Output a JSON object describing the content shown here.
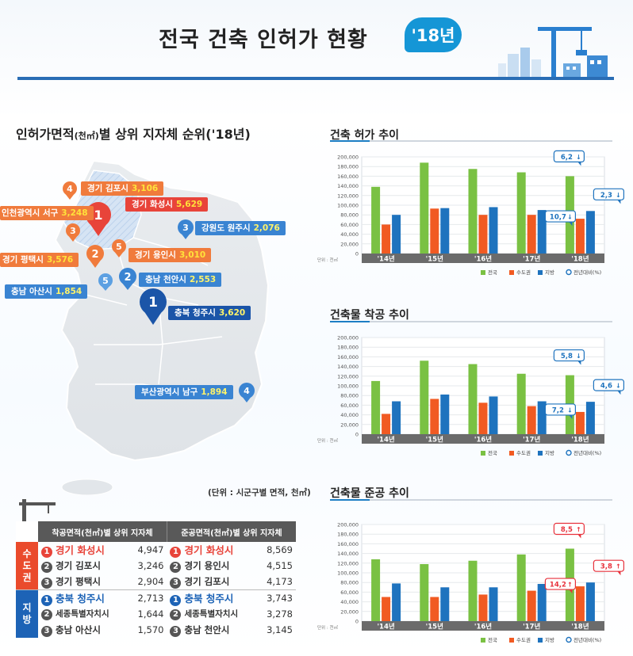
{
  "header": {
    "title": "전국 건축 인허가 현황",
    "year_badge": "'18년"
  },
  "map": {
    "title": "인허가면적",
    "title_unit": "(천㎡)",
    "title_rest": "별 상위 지자체 순위('18년)",
    "unit_note": "(단위 : 시군구별 면적, 천㎡)",
    "pins": [
      {
        "rank": "1",
        "name": "경기 화성시",
        "value": "5,629",
        "color": "#e8443a"
      },
      {
        "rank": "2",
        "name": "경기 평택시",
        "value": "3,576",
        "color": "#f07b3c"
      },
      {
        "rank": "3",
        "name": "인천광역시 서구",
        "value": "3,248",
        "color": "#f07b3c"
      },
      {
        "rank": "4",
        "name": "경기 김포시",
        "value": "3,106",
        "color": "#f07b3c"
      },
      {
        "rank": "5",
        "name": "경기 용인시",
        "value": "3,010",
        "color": "#f07b3c"
      },
      {
        "rank": "1",
        "name": "충북 청주시",
        "value": "3,620",
        "color": "#1b55a8"
      },
      {
        "rank": "2",
        "name": "충남 천안시",
        "value": "2,553",
        "color": "#3a84d2"
      },
      {
        "rank": "3",
        "name": "강원도 원주시",
        "value": "2,076",
        "color": "#3a84d2"
      },
      {
        "rank": "4",
        "name": "부산광역시 남구",
        "value": "1,894",
        "color": "#3a84d2"
      },
      {
        "rank": "5",
        "name": "충남 아산시",
        "value": "1,854",
        "color": "#3a84d2"
      }
    ]
  },
  "table": {
    "col1": "착공면적(천㎡)별 상위 지자체",
    "col2": "준공면적(천㎡)별 상위 지자체",
    "groups": [
      {
        "label": "수도권",
        "rows": [
          {
            "r1": "1",
            "n1": "경기 화성시",
            "v1": "4,947",
            "r2": "1",
            "n2": "경기 화성시",
            "v2": "8,569"
          },
          {
            "r1": "2",
            "n1": "경기 김포시",
            "v1": "3,246",
            "r2": "2",
            "n2": "경기 용인시",
            "v2": "4,515"
          },
          {
            "r1": "3",
            "n1": "경기 평택시",
            "v1": "2,904",
            "r2": "3",
            "n2": "경기 김포시",
            "v2": "4,173"
          }
        ]
      },
      {
        "label": "지방",
        "rows": [
          {
            "r1": "1",
            "n1": "충북 청주시",
            "v1": "2,713",
            "r2": "1",
            "n2": "충북 청주시",
            "v2": "3,743"
          },
          {
            "r1": "2",
            "n1": "세종특별자치시",
            "v1": "1,644",
            "r2": "2",
            "n2": "세종특별자치시",
            "v2": "3,278"
          },
          {
            "r1": "3",
            "n1": "충남 아산시",
            "v1": "1,570",
            "r2": "3",
            "n2": "충남 천안시",
            "v2": "3,145"
          }
        ]
      }
    ]
  },
  "colors": {
    "national": "#7ac143",
    "capital": "#f15a22",
    "local": "#1e73be",
    "up": "#e8323c",
    "down": "#1e73be"
  },
  "chart_data": [
    {
      "type": "bar",
      "title": "건축 허가 추이",
      "categories": [
        "'14년",
        "'15년",
        "'16년",
        "'17년",
        "'18년"
      ],
      "series": [
        {
          "name": "전국",
          "values": [
            138000,
            188000,
            175000,
            168000,
            160000
          ]
        },
        {
          "name": "수도권",
          "values": [
            60000,
            93000,
            80000,
            80000,
            72000
          ]
        },
        {
          "name": "지방",
          "values": [
            80000,
            94000,
            96000,
            90000,
            88000
          ]
        }
      ],
      "callouts": [
        {
          "series": "전국",
          "text": "6,2",
          "dir": "down"
        },
        {
          "series": "수도권",
          "text": "10,7",
          "dir": "down"
        },
        {
          "series": "지방",
          "text": "2,3",
          "dir": "down"
        }
      ],
      "legend_extra": "전년대비(%)",
      "unit": "단위 : 천㎡",
      "ylim": [
        0,
        200000
      ],
      "yticks": [
        "0",
        "20,000",
        "40,000",
        "60,000",
        "80,000",
        "100,000",
        "120,000",
        "140,000",
        "160,000",
        "180,000",
        "200,000"
      ]
    },
    {
      "type": "bar",
      "title": "건축물 착공 추이",
      "categories": [
        "'14년",
        "'15년",
        "'16년",
        "'17년",
        "'18년"
      ],
      "series": [
        {
          "name": "전국",
          "values": [
            110000,
            152000,
            145000,
            125000,
            122000
          ]
        },
        {
          "name": "수도권",
          "values": [
            42000,
            73000,
            65000,
            58000,
            46000
          ]
        },
        {
          "name": "지방",
          "values": [
            68000,
            82000,
            78000,
            68000,
            67000
          ]
        }
      ],
      "callouts": [
        {
          "series": "전국",
          "text": "5,8",
          "dir": "down"
        },
        {
          "series": "수도권",
          "text": "7,2",
          "dir": "down"
        },
        {
          "series": "지방",
          "text": "4,6",
          "dir": "down"
        }
      ],
      "legend_extra": "전년대비(%)",
      "unit": "단위 : 천㎡",
      "ylim": [
        0,
        200000
      ],
      "yticks": [
        "0",
        "20,000",
        "40,000",
        "60,000",
        "80,000",
        "100,000",
        "120,000",
        "140,000",
        "160,000",
        "180,000",
        "200,000"
      ]
    },
    {
      "type": "bar",
      "title": "건축물 준공 추이",
      "categories": [
        "'14년",
        "'15년",
        "'16년",
        "'17년",
        "'18년"
      ],
      "series": [
        {
          "name": "전국",
          "values": [
            128000,
            118000,
            125000,
            138000,
            150000
          ]
        },
        {
          "name": "수도권",
          "values": [
            50000,
            50000,
            55000,
            63000,
            72000
          ]
        },
        {
          "name": "지방",
          "values": [
            78000,
            70000,
            70000,
            77000,
            80000
          ]
        }
      ],
      "callouts": [
        {
          "series": "전국",
          "text": "8,5",
          "dir": "up"
        },
        {
          "series": "수도권",
          "text": "14,2",
          "dir": "up"
        },
        {
          "series": "지방",
          "text": "3,8",
          "dir": "up"
        }
      ],
      "legend_extra": "전년대비(%)",
      "unit": "단위 : 천㎡",
      "ylim": [
        0,
        200000
      ],
      "yticks": [
        "0",
        "20,000",
        "40,000",
        "60,000",
        "80,000",
        "100,000",
        "120,000",
        "140,000",
        "160,000",
        "180,000",
        "200,000"
      ]
    }
  ]
}
